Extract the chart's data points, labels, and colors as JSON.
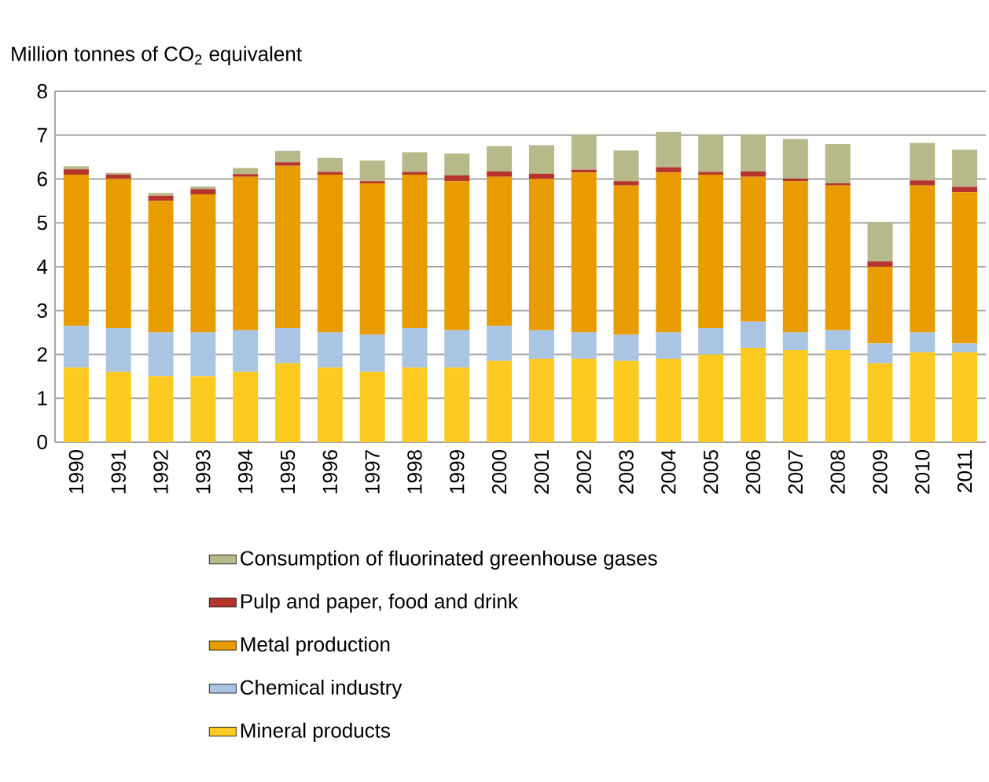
{
  "chart_data": {
    "type": "bar",
    "stacked": true,
    "ylabel": "Million tonnes of CO$_{2}$ equivalent",
    "categories": [
      "1990",
      "1991",
      "1992",
      "1993",
      "1994",
      "1995",
      "1996",
      "1997",
      "1998",
      "1999",
      "2000",
      "2001",
      "2002",
      "2003",
      "2004",
      "2005",
      "2006",
      "2007",
      "2008",
      "2009",
      "2010",
      "2011"
    ],
    "series": [
      {
        "name": "Mineral products",
        "color": "#fdca22",
        "values": [
          1.7,
          1.6,
          1.5,
          1.5,
          1.6,
          1.8,
          1.7,
          1.6,
          1.7,
          1.7,
          1.85,
          1.9,
          1.9,
          1.85,
          1.9,
          2.0,
          2.15,
          2.1,
          2.1,
          1.8,
          2.05,
          2.05
        ]
      },
      {
        "name": "Chemical industry",
        "color": "#a9c5e3",
        "values": [
          0.95,
          1.0,
          1.0,
          1.0,
          0.95,
          0.8,
          0.8,
          0.85,
          0.9,
          0.85,
          0.8,
          0.65,
          0.6,
          0.6,
          0.6,
          0.6,
          0.6,
          0.4,
          0.45,
          0.45,
          0.45,
          0.2
        ]
      },
      {
        "name": "Metal production",
        "color": "#e89c00",
        "values": [
          3.45,
          3.4,
          3.0,
          3.15,
          3.5,
          3.7,
          3.6,
          3.45,
          3.5,
          3.4,
          3.4,
          3.45,
          3.65,
          3.4,
          3.65,
          3.5,
          3.3,
          3.45,
          3.3,
          1.75,
          3.35,
          3.45
        ]
      },
      {
        "name": "Pulp and paper, food and drink",
        "color": "#b5352d",
        "values": [
          0.12,
          0.1,
          0.12,
          0.12,
          0.06,
          0.08,
          0.06,
          0.05,
          0.06,
          0.13,
          0.12,
          0.12,
          0.06,
          0.1,
          0.12,
          0.06,
          0.12,
          0.06,
          0.05,
          0.12,
          0.12,
          0.12
        ]
      },
      {
        "name": "Consumption of fluorinated greenhouse gases",
        "color": "#b7b98a",
        "values": [
          0.07,
          0.04,
          0.06,
          0.06,
          0.14,
          0.26,
          0.32,
          0.47,
          0.45,
          0.5,
          0.58,
          0.65,
          0.8,
          0.7,
          0.8,
          0.85,
          0.85,
          0.9,
          0.9,
          0.9,
          0.85,
          0.85
        ]
      }
    ],
    "ylim": [
      0,
      8
    ],
    "yticks": [
      0,
      1,
      2,
      3,
      4,
      5,
      6,
      7,
      8
    ],
    "grid": "y",
    "legend": "bottom"
  }
}
